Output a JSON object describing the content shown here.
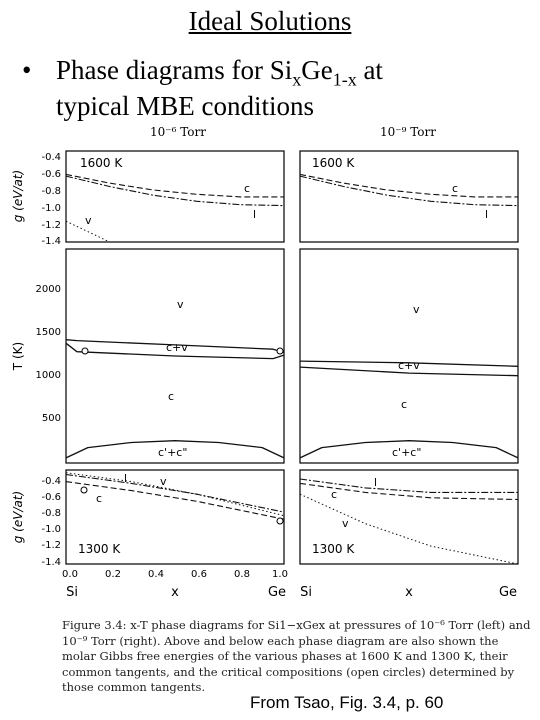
{
  "title": "Ideal Solutions",
  "bullet": {
    "symbol": "•",
    "line1_pre": "Phase diagrams for Si",
    "sub_x": "x",
    "mid": "Ge",
    "sub_1x": "1-x",
    "line1_post": " at",
    "line2": "typical MBE conditions"
  },
  "figure": {
    "pressure_left": "10⁻⁶ Torr",
    "pressure_right": "10⁻⁹ Torr",
    "top_temp_label": "1600 K",
    "bottom_temp_label": "1300 K",
    "g_axis_label": "g (eV/at)",
    "T_axis_label": "T (K)",
    "x_axis_label": "x",
    "x_end_left": "Si",
    "x_end_right": "Ge",
    "g_ticks_top": [
      "-0.4",
      "-0.6",
      "-0.8",
      "-1.0",
      "-1.2",
      "-1.4"
    ],
    "T_ticks": [
      "2000",
      "1500",
      "1000",
      "500"
    ],
    "g_ticks_bottom": [
      "-0.4",
      "-0.6",
      "-0.8",
      "-1.0",
      "-1.2",
      "-1.4"
    ],
    "x_ticks": [
      "0.0",
      "0.2",
      "0.4",
      "0.6",
      "0.8",
      "1.0"
    ],
    "region_labels": {
      "v": "v",
      "cv": "c+v",
      "c": "c",
      "cc": "c'+c\"",
      "l": "l"
    }
  },
  "chart_data": [
    {
      "type": "line",
      "panel": "left-top",
      "title": "1600 K",
      "ylabel": "g (eV/at)",
      "ylim": [
        -1.4,
        -0.35
      ],
      "xlim": [
        0,
        1
      ],
      "series": [
        {
          "name": "c",
          "x": [
            0,
            0.2,
            0.4,
            0.6,
            0.8,
            1.0
          ],
          "values": [
            -0.62,
            -0.72,
            -0.8,
            -0.85,
            -0.88,
            -0.88
          ]
        },
        {
          "name": "l",
          "x": [
            0,
            0.2,
            0.4,
            0.6,
            0.8,
            1.0
          ],
          "values": [
            -0.64,
            -0.76,
            -0.86,
            -0.93,
            -0.97,
            -0.98
          ]
        },
        {
          "name": "v",
          "x": [
            0,
            0.05,
            0.1,
            0.15,
            0.2
          ],
          "values": [
            -1.16,
            -1.22,
            -1.28,
            -1.34,
            -1.4
          ]
        }
      ]
    },
    {
      "type": "line",
      "panel": "left-middle",
      "ylabel": "T (K)",
      "ylim": [
        0,
        2500
      ],
      "xlim": [
        0,
        1
      ],
      "series": [
        {
          "name": "c+v upper boundary",
          "x": [
            0,
            0.05,
            0.5,
            0.95,
            1.0
          ],
          "values": [
            1440,
            1430,
            1380,
            1330,
            1290
          ]
        },
        {
          "name": "c+v lower boundary",
          "x": [
            0,
            0.05,
            0.5,
            0.95,
            1.0
          ],
          "values": [
            1400,
            1300,
            1250,
            1220,
            1260
          ]
        },
        {
          "name": "c'+c\" dome",
          "x": [
            0,
            0.1,
            0.3,
            0.5,
            0.7,
            0.9,
            1.0
          ],
          "values": [
            60,
            180,
            240,
            260,
            240,
            180,
            60
          ]
        }
      ],
      "annotations": [
        "v",
        "c+v",
        "c",
        "c'+c\""
      ]
    },
    {
      "type": "line",
      "panel": "left-bottom",
      "title": "1300 K",
      "ylabel": "g (eV/at)",
      "ylim": [
        -1.4,
        -0.35
      ],
      "xlim": [
        0,
        1
      ],
      "series": [
        {
          "name": "v",
          "x": [
            0,
            0.3,
            0.6,
            1.0
          ],
          "values": [
            -0.38,
            -0.48,
            -0.62,
            -0.86
          ]
        },
        {
          "name": "l",
          "x": [
            0,
            0.3,
            0.6,
            1.0
          ],
          "values": [
            -0.4,
            -0.5,
            -0.62,
            -0.82
          ]
        },
        {
          "name": "c",
          "x": [
            0,
            0.3,
            0.6,
            1.0
          ],
          "values": [
            -0.48,
            -0.58,
            -0.7,
            -0.9
          ]
        }
      ]
    },
    {
      "type": "line",
      "panel": "right-top",
      "title": "1600 K",
      "ylim": [
        -1.4,
        -0.35
      ],
      "xlim": [
        0,
        1
      ],
      "series": [
        {
          "name": "c",
          "x": [
            0,
            0.2,
            0.4,
            0.6,
            0.8,
            1.0
          ],
          "values": [
            -0.62,
            -0.72,
            -0.8,
            -0.85,
            -0.88,
            -0.88
          ]
        },
        {
          "name": "l",
          "x": [
            0,
            0.2,
            0.4,
            0.6,
            0.8,
            1.0
          ],
          "values": [
            -0.64,
            -0.76,
            -0.86,
            -0.93,
            -0.97,
            -0.98
          ]
        }
      ]
    },
    {
      "type": "line",
      "panel": "right-middle",
      "ylim": [
        0,
        2500
      ],
      "xlim": [
        0,
        1
      ],
      "series": [
        {
          "name": "c+v upper boundary",
          "x": [
            0,
            0.5,
            1.0
          ],
          "values": [
            1190,
            1170,
            1130
          ]
        },
        {
          "name": "c+v lower boundary",
          "x": [
            0,
            0.5,
            1.0
          ],
          "values": [
            1120,
            1050,
            1020
          ]
        },
        {
          "name": "c'+c\" dome",
          "x": [
            0,
            0.1,
            0.3,
            0.5,
            0.7,
            0.9,
            1.0
          ],
          "values": [
            60,
            180,
            240,
            260,
            240,
            180,
            60
          ]
        }
      ],
      "annotations": [
        "v",
        "c+v",
        "c",
        "c'+c\""
      ]
    },
    {
      "type": "line",
      "panel": "right-bottom",
      "title": "1300 K",
      "ylim": [
        -1.4,
        -0.35
      ],
      "xlim": [
        0,
        1
      ],
      "series": [
        {
          "name": "l",
          "x": [
            0,
            0.3,
            0.6,
            1.0
          ],
          "values": [
            -0.45,
            -0.55,
            -0.6,
            -0.6
          ]
        },
        {
          "name": "c",
          "x": [
            0,
            0.3,
            0.6,
            1.0
          ],
          "values": [
            -0.5,
            -0.6,
            -0.66,
            -0.68
          ]
        },
        {
          "name": "v",
          "x": [
            0,
            0.3,
            0.6,
            1.0
          ],
          "values": [
            -0.62,
            -0.95,
            -1.2,
            -1.4
          ]
        }
      ]
    }
  ],
  "caption": "Figure 3.4: x-T phase diagrams for Si1−xGex at pressures of 10⁻⁶ Torr (left) and 10⁻⁹ Torr (right). Above and below each phase diagram are also shown the molar Gibbs free energies of the various phases at 1600 K and 1300 K, their common tangents, and the critical compositions (open circles) determined by those common tangents.",
  "credit": "From Tsao, Fig. 3.4, p. 60"
}
